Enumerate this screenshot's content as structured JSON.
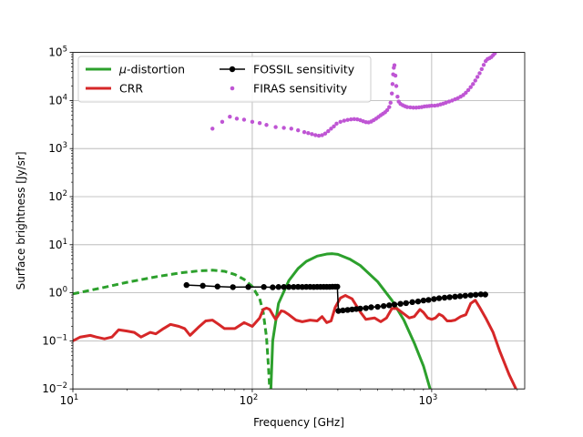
{
  "chart_data": {
    "type": "line",
    "xscale": "log",
    "yscale": "log",
    "xlim": [
      10,
      3300
    ],
    "ylim": [
      0.01,
      100000
    ],
    "grid": true,
    "xlabel": "Frequency [GHz]",
    "ylabel": "Surface brightness [Jy/sr]",
    "x_tick_values": [
      10,
      100,
      1000
    ],
    "x_tick_labels": [
      [
        "10",
        "1"
      ],
      [
        "10",
        "2"
      ],
      [
        "10",
        "3"
      ]
    ],
    "y_tick_values": [
      0.01,
      0.1,
      1,
      10,
      100,
      1000,
      10000,
      100000
    ],
    "y_tick_labels": [
      [
        "10",
        "−2"
      ],
      [
        "10",
        "−1"
      ],
      [
        "10",
        "0"
      ],
      [
        "10",
        "1"
      ],
      [
        "10",
        "2"
      ],
      [
        "10",
        "3"
      ],
      [
        "10",
        "4"
      ],
      [
        "10",
        "5"
      ]
    ],
    "legend_position": "upper-left",
    "legend": [
      {
        "label_prefix": "μ",
        "label": "-distortion",
        "series": "mu"
      },
      {
        "label_prefix": "",
        "label": "CRR",
        "series": "crr"
      },
      {
        "label_prefix": "",
        "label": "FOSSIL sensitivity",
        "series": "fossil"
      },
      {
        "label_prefix": "",
        "label": "FIRAS sensitivity",
        "series": "firas"
      }
    ],
    "series": [
      {
        "key": "mu",
        "name": "μ-distortion",
        "color": "#2ca02c",
        "style": "solid line; dashed where the signal is negative (|value| shown)",
        "negative_part": [
          [
            10,
            0.95
          ],
          [
            15,
            1.3
          ],
          [
            20,
            1.65
          ],
          [
            30,
            2.2
          ],
          [
            40,
            2.6
          ],
          [
            50,
            2.85
          ],
          [
            60,
            2.95
          ],
          [
            70,
            2.8
          ],
          [
            80,
            2.4
          ],
          [
            90,
            1.9
          ],
          [
            100,
            1.35
          ],
          [
            110,
            0.75
          ],
          [
            115,
            0.4
          ],
          [
            120,
            0.12
          ],
          [
            123,
            0.03
          ],
          [
            125,
            0.01
          ]
        ],
        "positive_part": [
          [
            127,
            0.01
          ],
          [
            130,
            0.1
          ],
          [
            140,
            0.6
          ],
          [
            160,
            1.8
          ],
          [
            180,
            3.2
          ],
          [
            200,
            4.5
          ],
          [
            230,
            5.8
          ],
          [
            260,
            6.4
          ],
          [
            280,
            6.5
          ],
          [
            300,
            6.3
          ],
          [
            350,
            5.0
          ],
          [
            400,
            3.7
          ],
          [
            500,
            1.7
          ],
          [
            600,
            0.7
          ],
          [
            700,
            0.27
          ],
          [
            800,
            0.09
          ],
          [
            900,
            0.03
          ],
          [
            980,
            0.01
          ]
        ]
      },
      {
        "key": "crr",
        "name": "CRR",
        "color": "#d62728",
        "style": "solid line",
        "points": [
          [
            10,
            0.1
          ],
          [
            11,
            0.12
          ],
          [
            12.5,
            0.13
          ],
          [
            13.5,
            0.12
          ],
          [
            15,
            0.11
          ],
          [
            16.5,
            0.12
          ],
          [
            18,
            0.17
          ],
          [
            20,
            0.16
          ],
          [
            22,
            0.15
          ],
          [
            24,
            0.12
          ],
          [
            27,
            0.15
          ],
          [
            29,
            0.14
          ],
          [
            32,
            0.18
          ],
          [
            35,
            0.22
          ],
          [
            39,
            0.2
          ],
          [
            42,
            0.18
          ],
          [
            45,
            0.13
          ],
          [
            50,
            0.19
          ],
          [
            55,
            0.26
          ],
          [
            60,
            0.27
          ],
          [
            65,
            0.22
          ],
          [
            70,
            0.18
          ],
          [
            80,
            0.18
          ],
          [
            90,
            0.24
          ],
          [
            100,
            0.2
          ],
          [
            110,
            0.3
          ],
          [
            115,
            0.45
          ],
          [
            120,
            0.48
          ],
          [
            125,
            0.45
          ],
          [
            130,
            0.35
          ],
          [
            135,
            0.28
          ],
          [
            145,
            0.42
          ],
          [
            150,
            0.41
          ],
          [
            160,
            0.35
          ],
          [
            175,
            0.27
          ],
          [
            190,
            0.25
          ],
          [
            210,
            0.27
          ],
          [
            230,
            0.26
          ],
          [
            245,
            0.32
          ],
          [
            260,
            0.24
          ],
          [
            275,
            0.26
          ],
          [
            290,
            0.5
          ],
          [
            310,
            0.78
          ],
          [
            330,
            0.88
          ],
          [
            360,
            0.75
          ],
          [
            400,
            0.4
          ],
          [
            430,
            0.28
          ],
          [
            480,
            0.3
          ],
          [
            520,
            0.25
          ],
          [
            560,
            0.3
          ],
          [
            600,
            0.47
          ],
          [
            640,
            0.47
          ],
          [
            690,
            0.38
          ],
          [
            750,
            0.3
          ],
          [
            800,
            0.32
          ],
          [
            860,
            0.45
          ],
          [
            900,
            0.39
          ],
          [
            950,
            0.3
          ],
          [
            1000,
            0.28
          ],
          [
            1050,
            0.3
          ],
          [
            1100,
            0.36
          ],
          [
            1150,
            0.33
          ],
          [
            1220,
            0.26
          ],
          [
            1280,
            0.26
          ],
          [
            1350,
            0.27
          ],
          [
            1450,
            0.32
          ],
          [
            1550,
            0.35
          ],
          [
            1650,
            0.6
          ],
          [
            1750,
            0.7
          ],
          [
            1850,
            0.5
          ],
          [
            2000,
            0.3
          ],
          [
            2200,
            0.15
          ],
          [
            2400,
            0.06
          ],
          [
            2700,
            0.02
          ],
          [
            2950,
            0.01
          ]
        ]
      },
      {
        "key": "fossil",
        "name": "FOSSIL sensitivity",
        "color": "#000000",
        "style": "line with round markers",
        "segments": [
          [
            [
              43,
              1.45
            ],
            [
              53,
              1.4
            ],
            [
              64,
              1.35
            ],
            [
              78,
              1.31
            ],
            [
              95,
              1.32
            ],
            [
              116,
              1.32
            ],
            [
              130,
              1.3
            ],
            [
              140,
              1.32
            ],
            [
              150,
              1.32
            ],
            [
              160,
              1.32
            ],
            [
              170,
              1.32
            ],
            [
              180,
              1.33
            ],
            [
              190,
              1.32
            ],
            [
              200,
              1.33
            ],
            [
              210,
              1.33
            ],
            [
              220,
              1.32
            ],
            [
              230,
              1.33
            ],
            [
              240,
              1.33
            ],
            [
              250,
              1.33
            ],
            [
              260,
              1.33
            ],
            [
              270,
              1.33
            ],
            [
              280,
              1.34
            ],
            [
              290,
              1.34
            ],
            [
              298,
              1.34
            ]
          ],
          [
            [
              302,
              0.42
            ],
            [
              320,
              0.43
            ],
            [
              340,
              0.44
            ],
            [
              360,
              0.45
            ],
            [
              380,
              0.46
            ],
            [
              400,
              0.47
            ],
            [
              430,
              0.48
            ],
            [
              460,
              0.5
            ],
            [
              500,
              0.51
            ],
            [
              540,
              0.53
            ],
            [
              580,
              0.55
            ],
            [
              620,
              0.57
            ],
            [
              670,
              0.59
            ],
            [
              720,
              0.61
            ],
            [
              780,
              0.64
            ],
            [
              840,
              0.66
            ],
            [
              900,
              0.69
            ],
            [
              960,
              0.71
            ],
            [
              1030,
              0.74
            ],
            [
              1100,
              0.77
            ],
            [
              1180,
              0.79
            ],
            [
              1260,
              0.81
            ],
            [
              1350,
              0.83
            ],
            [
              1440,
              0.85
            ],
            [
              1540,
              0.87
            ],
            [
              1650,
              0.89
            ],
            [
              1760,
              0.91
            ],
            [
              1880,
              0.93
            ],
            [
              1990,
              0.92
            ]
          ]
        ]
      },
      {
        "key": "firas",
        "name": "FIRAS sensitivity",
        "color": "#bf55d4",
        "style": "dots",
        "points": [
          [
            60,
            2600
          ],
          [
            68,
            3600
          ],
          [
            75,
            4600
          ],
          [
            82,
            4200
          ],
          [
            90,
            4000
          ],
          [
            100,
            3600
          ],
          [
            110,
            3400
          ],
          [
            120,
            3100
          ],
          [
            135,
            2800
          ],
          [
            150,
            2700
          ],
          [
            165,
            2600
          ],
          [
            180,
            2400
          ],
          [
            195,
            2200
          ],
          [
            205,
            2100
          ],
          [
            215,
            2000
          ],
          [
            225,
            1900
          ],
          [
            235,
            1850
          ],
          [
            245,
            1900
          ],
          [
            255,
            2050
          ],
          [
            265,
            2300
          ],
          [
            275,
            2600
          ],
          [
            285,
            2900
          ],
          [
            295,
            3300
          ],
          [
            310,
            3600
          ],
          [
            325,
            3800
          ],
          [
            340,
            3950
          ],
          [
            355,
            4050
          ],
          [
            370,
            4100
          ],
          [
            385,
            4050
          ],
          [
            400,
            3900
          ],
          [
            415,
            3700
          ],
          [
            430,
            3550
          ],
          [
            445,
            3500
          ],
          [
            460,
            3650
          ],
          [
            475,
            3900
          ],
          [
            490,
            4200
          ],
          [
            505,
            4550
          ],
          [
            520,
            4950
          ],
          [
            535,
            5300
          ],
          [
            550,
            5700
          ],
          [
            565,
            6300
          ],
          [
            580,
            7300
          ],
          [
            590,
            9000
          ],
          [
            600,
            14000
          ],
          [
            605,
            22000
          ],
          [
            610,
            35000
          ],
          [
            615,
            48000
          ],
          [
            620,
            54000
          ],
          [
            628,
            33000
          ],
          [
            635,
            20000
          ],
          [
            645,
            12000
          ],
          [
            655,
            9500
          ],
          [
            670,
            8500
          ],
          [
            690,
            8000
          ],
          [
            710,
            7600
          ],
          [
            730,
            7300
          ],
          [
            760,
            7200
          ],
          [
            790,
            7100
          ],
          [
            820,
            7100
          ],
          [
            850,
            7200
          ],
          [
            880,
            7300
          ],
          [
            910,
            7500
          ],
          [
            940,
            7600
          ],
          [
            970,
            7700
          ],
          [
            1000,
            7800
          ],
          [
            1040,
            7800
          ],
          [
            1080,
            8000
          ],
          [
            1120,
            8300
          ],
          [
            1160,
            8600
          ],
          [
            1200,
            9000
          ],
          [
            1250,
            9500
          ],
          [
            1300,
            10000
          ],
          [
            1350,
            10600
          ],
          [
            1400,
            11200
          ],
          [
            1450,
            12000
          ],
          [
            1500,
            13000
          ],
          [
            1550,
            14500
          ],
          [
            1600,
            16500
          ],
          [
            1650,
            19000
          ],
          [
            1700,
            22000
          ],
          [
            1750,
            26000
          ],
          [
            1800,
            31000
          ],
          [
            1850,
            37000
          ],
          [
            1900,
            45000
          ],
          [
            1950,
            55000
          ],
          [
            2000,
            66000
          ],
          [
            2050,
            73000
          ],
          [
            2100,
            76000
          ],
          [
            2150,
            80000
          ],
          [
            2200,
            88000
          ],
          [
            2250,
            96000
          ]
        ]
      }
    ]
  }
}
